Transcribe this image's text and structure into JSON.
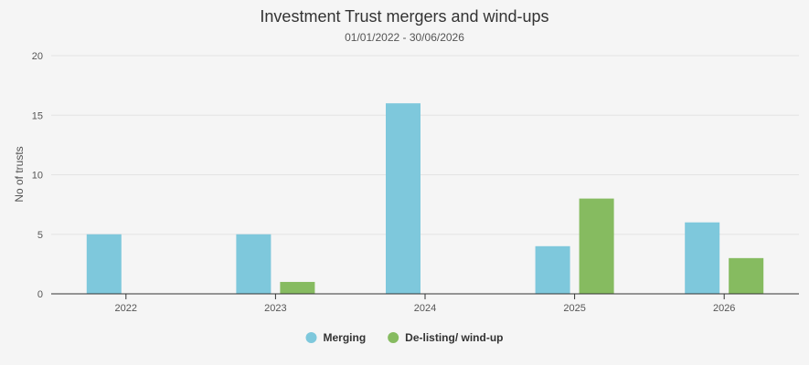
{
  "chart_data": {
    "type": "bar",
    "title": "Investment Trust mergers and wind-ups",
    "subtitle": "01/01/2022 - 30/06/2026",
    "xlabel": "",
    "ylabel": "No of trusts",
    "ylim": [
      0,
      20
    ],
    "yticks": [
      0,
      5,
      10,
      15,
      20
    ],
    "grid": true,
    "legend_position": "bottom-center",
    "categories": [
      "2022",
      "2023",
      "2024",
      "2025",
      "2026"
    ],
    "series": [
      {
        "name": "Merging",
        "color": "#7ec8dc",
        "values": [
          5,
          5,
          16,
          4,
          6
        ]
      },
      {
        "name": "De-listing/ wind-up",
        "color": "#86bb60",
        "values": [
          0,
          1,
          0,
          8,
          3
        ]
      }
    ]
  }
}
